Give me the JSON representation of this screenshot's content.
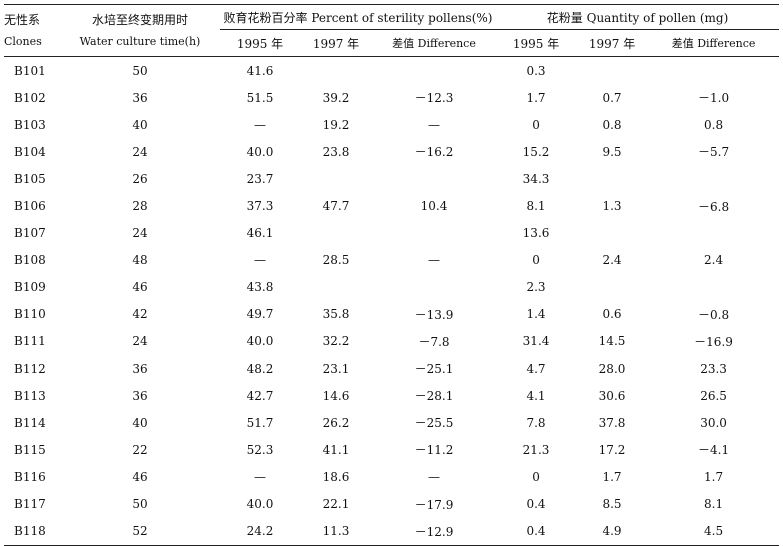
{
  "header": {
    "clone_label_zh": "无性系",
    "clone_label_en": "Clones",
    "time_label_zh": "水培至终变期用时",
    "time_label_en": "Water culture time(h)",
    "sterility_group": "败育花粉百分率 Percent of sterility pollens(%)",
    "quantity_group": "花粉量 Quantity of pollen (mg)",
    "year_1995": "1995 年",
    "year_1997": "1997 年",
    "difference": "差值 Difference"
  },
  "rows": [
    {
      "clone": "B101",
      "time": "50",
      "s1995": "41.6",
      "s1997": "",
      "sdiff": "",
      "q1995": "0.3",
      "q1997": "",
      "qdiff": ""
    },
    {
      "clone": "B102",
      "time": "36",
      "s1995": "51.5",
      "s1997": "39.2",
      "sdiff": "－12.3",
      "q1995": "1.7",
      "q1997": "0.7",
      "qdiff": "－1.0"
    },
    {
      "clone": "B103",
      "time": "40",
      "s1995": "—",
      "s1997": "19.2",
      "sdiff": "—",
      "q1995": "0",
      "q1997": "0.8",
      "qdiff": "0.8"
    },
    {
      "clone": "B104",
      "time": "24",
      "s1995": "40.0",
      "s1997": "23.8",
      "sdiff": "－16.2",
      "q1995": "15.2",
      "q1997": "9.5",
      "qdiff": "－5.7"
    },
    {
      "clone": "B105",
      "time": "26",
      "s1995": "23.7",
      "s1997": "",
      "sdiff": "",
      "q1995": "34.3",
      "q1997": "",
      "qdiff": ""
    },
    {
      "clone": "B106",
      "time": "28",
      "s1995": "37.3",
      "s1997": "47.7",
      "sdiff": "10.4",
      "q1995": "8.1",
      "q1997": "1.3",
      "qdiff": "－6.8"
    },
    {
      "clone": "B107",
      "time": "24",
      "s1995": "46.1",
      "s1997": "",
      "sdiff": "",
      "q1995": "13.6",
      "q1997": "",
      "qdiff": ""
    },
    {
      "clone": "B108",
      "time": "48",
      "s1995": "—",
      "s1997": "28.5",
      "sdiff": "—",
      "q1995": "0",
      "q1997": "2.4",
      "qdiff": "2.4"
    },
    {
      "clone": "B109",
      "time": "46",
      "s1995": "43.8",
      "s1997": "",
      "sdiff": "",
      "q1995": "2.3",
      "q1997": "",
      "qdiff": ""
    },
    {
      "clone": "B110",
      "time": "42",
      "s1995": "49.7",
      "s1997": "35.8",
      "sdiff": "－13.9",
      "q1995": "1.4",
      "q1997": "0.6",
      "qdiff": "－0.8"
    },
    {
      "clone": "B111",
      "time": "24",
      "s1995": "40.0",
      "s1997": "32.2",
      "sdiff": "－7.8",
      "q1995": "31.4",
      "q1997": "14.5",
      "qdiff": "－16.9"
    },
    {
      "clone": "B112",
      "time": "36",
      "s1995": "48.2",
      "s1997": "23.1",
      "sdiff": "－25.1",
      "q1995": "4.7",
      "q1997": "28.0",
      "qdiff": "23.3"
    },
    {
      "clone": "B113",
      "time": "36",
      "s1995": "42.7",
      "s1997": "14.6",
      "sdiff": "－28.1",
      "q1995": "4.1",
      "q1997": "30.6",
      "qdiff": "26.5"
    },
    {
      "clone": "B114",
      "time": "40",
      "s1995": "51.7",
      "s1997": "26.2",
      "sdiff": "－25.5",
      "q1995": "7.8",
      "q1997": "37.8",
      "qdiff": "30.0"
    },
    {
      "clone": "B115",
      "time": "22",
      "s1995": "52.3",
      "s1997": "41.1",
      "sdiff": "－11.2",
      "q1995": "21.3",
      "q1997": "17.2",
      "qdiff": "－4.1"
    },
    {
      "clone": "B116",
      "time": "46",
      "s1995": "—",
      "s1997": "18.6",
      "sdiff": "—",
      "q1995": "0",
      "q1997": "1.7",
      "qdiff": "1.7"
    },
    {
      "clone": "B117",
      "time": "50",
      "s1995": "40.0",
      "s1997": "22.1",
      "sdiff": "－17.9",
      "q1995": "0.4",
      "q1997": "8.5",
      "qdiff": "8.1"
    },
    {
      "clone": "B118",
      "time": "52",
      "s1995": "24.2",
      "s1997": "11.3",
      "sdiff": "－12.9",
      "q1995": "0.4",
      "q1997": "4.9",
      "qdiff": "4.5"
    }
  ]
}
